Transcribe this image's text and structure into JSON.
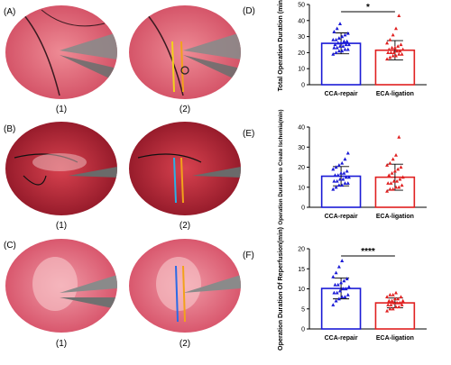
{
  "photo_panels": [
    {
      "label": "(A)",
      "sub_left": "(1)",
      "sub_right": "(2)",
      "tone": "pink"
    },
    {
      "label": "(B)",
      "sub_left": "(1)",
      "sub_right": "(2)",
      "tone": "red"
    },
    {
      "label": "(C)",
      "sub_left": "(1)",
      "sub_right": "(2)",
      "tone": "pink"
    }
  ],
  "colors": {
    "ccab": "#1a1ad6",
    "ecab": "#e02020",
    "tissue_pink": "#e56a7a",
    "tissue_red": "#c8283a"
  },
  "chart_data": [
    {
      "panel": "(D)",
      "type": "bar",
      "categories": [
        "CCA-repair",
        "ECA-ligation"
      ],
      "values": [
        25.8,
        21.5
      ],
      "errors": [
        6.5,
        6.0
      ],
      "ylabel": "Total Operation Duration (min)",
      "ylim": [
        0,
        50
      ],
      "yticks": [
        0,
        10,
        20,
        30,
        40,
        50
      ],
      "significance": "*",
      "points": [
        [
          19,
          20,
          21,
          21,
          22,
          22,
          23,
          23,
          24,
          24,
          25,
          25,
          25,
          26,
          26,
          27,
          27,
          28,
          28,
          29,
          30,
          31,
          32,
          33,
          35,
          38
        ],
        [
          16,
          17,
          18,
          18,
          19,
          19,
          20,
          20,
          20,
          21,
          21,
          22,
          22,
          23,
          23,
          24,
          25,
          26,
          28,
          31,
          35,
          43
        ]
      ]
    },
    {
      "panel": "(E)",
      "type": "bar",
      "categories": [
        "CCA-repair",
        "ECA-ligation"
      ],
      "values": [
        15.5,
        15.0
      ],
      "errors": [
        4.8,
        6.5
      ],
      "ylabel": "Operation Duration to Create Ischemia(min)",
      "ylim": [
        0,
        40
      ],
      "yticks": [
        0,
        10,
        20,
        30,
        40
      ],
      "significance": "",
      "points": [
        [
          9,
          10,
          11,
          11,
          12,
          12,
          13,
          13,
          14,
          14,
          15,
          15,
          16,
          16,
          17,
          17,
          18,
          19,
          20,
          21,
          22,
          24,
          27
        ],
        [
          8,
          9,
          9,
          10,
          10,
          11,
          12,
          12,
          13,
          13,
          14,
          15,
          16,
          17,
          18,
          19,
          20,
          21,
          22,
          24,
          26,
          35
        ]
      ]
    },
    {
      "panel": "(F)",
      "type": "bar",
      "categories": [
        "CCA-repair",
        "ECA-ligation"
      ],
      "values": [
        10.1,
        6.5
      ],
      "errors": [
        2.6,
        1.2
      ],
      "ylabel": "Operation Duration Of Reperfusion(min)",
      "ylim": [
        0,
        20
      ],
      "yticks": [
        0,
        5,
        10,
        15,
        20
      ],
      "significance": "****",
      "points": [
        [
          6,
          7,
          7.5,
          8,
          8,
          8.5,
          9,
          9,
          9.5,
          10,
          10,
          10.5,
          11,
          11,
          11.5,
          12,
          12.5,
          13,
          14,
          15.5,
          17
        ],
        [
          4.5,
          5,
          5,
          5.5,
          5.5,
          6,
          6,
          6,
          6.5,
          6.5,
          6.5,
          7,
          7,
          7,
          7.5,
          7.5,
          8,
          8,
          8.5,
          8.5,
          9
        ]
      ]
    }
  ]
}
